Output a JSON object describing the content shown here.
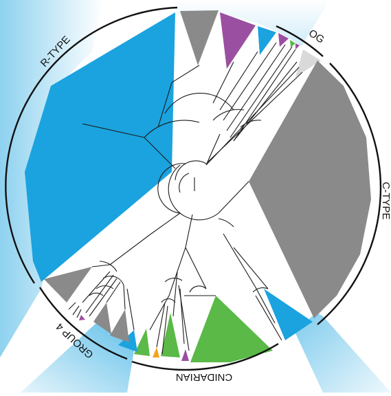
{
  "diagram": {
    "type": "circular-phylogenetic-tree",
    "colors": {
      "blue": "#1aa3df",
      "gray": "#8a8a8a",
      "light_gray": "#d9d9d9",
      "purple": "#9b4fa0",
      "green": "#5ab947",
      "orange": "#f3a320",
      "branch": "#1a1a1a",
      "ring": "#111111"
    },
    "clade_labels": {
      "r_type": "R-TYPE",
      "og": "OG",
      "c_type": "C-TYPE",
      "cnidarian": "CNIDARIAN",
      "group4": "GROUP 4"
    }
  }
}
